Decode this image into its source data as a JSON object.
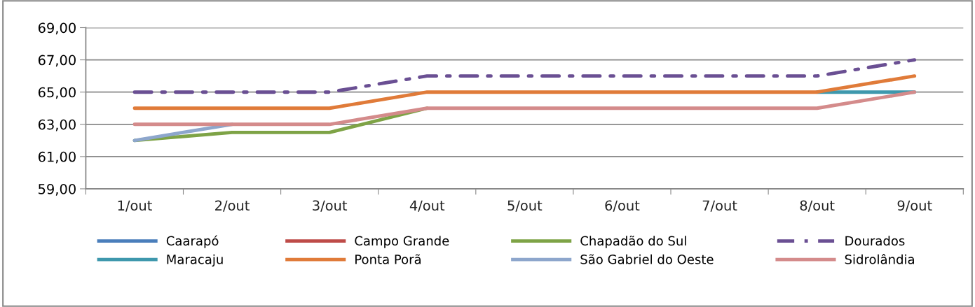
{
  "chart_data": {
    "type": "line",
    "categories": [
      "1/out",
      "2/out",
      "3/out",
      "4/out",
      "5/out",
      "6/out",
      "7/out",
      "8/out",
      "9/out"
    ],
    "series": [
      {
        "name": "Caarapó",
        "color": "#4a7ebb",
        "values": [
          null,
          null,
          null,
          null,
          null,
          null,
          null,
          null,
          null
        ]
      },
      {
        "name": "Campo Grande",
        "color": "#be4b48",
        "values": [
          null,
          null,
          null,
          null,
          null,
          null,
          null,
          null,
          null
        ]
      },
      {
        "name": "Chapadão do Sul",
        "color": "#7ea346",
        "values": [
          62,
          62.5,
          62.5,
          64,
          null,
          null,
          null,
          null,
          null
        ]
      },
      {
        "name": "Dourados",
        "color": "#6a4f93",
        "line_style": "dashdot",
        "values": [
          65,
          65,
          65,
          66,
          66,
          66,
          66,
          66,
          67
        ]
      },
      {
        "name": "Maracaju",
        "color": "#3e98ad",
        "values": [
          null,
          null,
          null,
          null,
          null,
          null,
          null,
          65,
          65
        ]
      },
      {
        "name": "Ponta Porã",
        "color": "#e07b39",
        "values": [
          64,
          64,
          64,
          65,
          65,
          65,
          65,
          65,
          66
        ]
      },
      {
        "name": "São Gabriel do Oeste",
        "color": "#8da6cc",
        "values": [
          62,
          63,
          null,
          null,
          null,
          null,
          null,
          null,
          null
        ]
      },
      {
        "name": "Sidrolândia",
        "color": "#d48b8b",
        "values": [
          63,
          63,
          63,
          64,
          64,
          64,
          64,
          64,
          65
        ]
      }
    ],
    "ylim": [
      59,
      69
    ],
    "yticks": [
      {
        "value": 59,
        "label": "59,00"
      },
      {
        "value": 61,
        "label": "61,00"
      },
      {
        "value": 63,
        "label": "63,00"
      },
      {
        "value": 65,
        "label": "65,00"
      },
      {
        "value": 67,
        "label": "67,00"
      },
      {
        "value": 69,
        "label": "69,00"
      }
    ],
    "grid": "y",
    "legend": "bottom",
    "marker": "none",
    "line_style": "solid"
  }
}
